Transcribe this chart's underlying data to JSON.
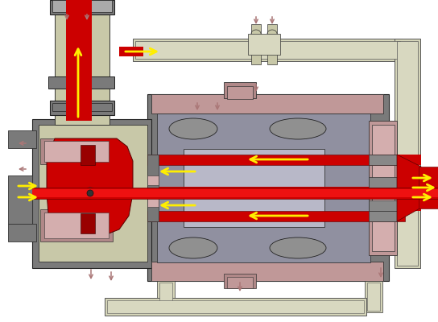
{
  "bg": "#ffffff",
  "gray": "#7a7a7a",
  "med_gray": "#909090",
  "lt_gray": "#aaaaaa",
  "blue_gray": "#9090a0",
  "lt_blue_gray": "#b8b8c8",
  "olive": "#c8c8a8",
  "lt_olive": "#d8d8c0",
  "red": "#cc0000",
  "dk_red": "#990000",
  "yellow": "#ffee00",
  "pink": "#c09898",
  "lt_pink": "#d4aeae",
  "mauve": "#b08888",
  "brown_arrow": "#aa7777",
  "pipe": "#d4d4b8",
  "lt_pipe": "#e0e0cc",
  "figsize": [
    5.44,
    4.0
  ],
  "dpi": 100
}
